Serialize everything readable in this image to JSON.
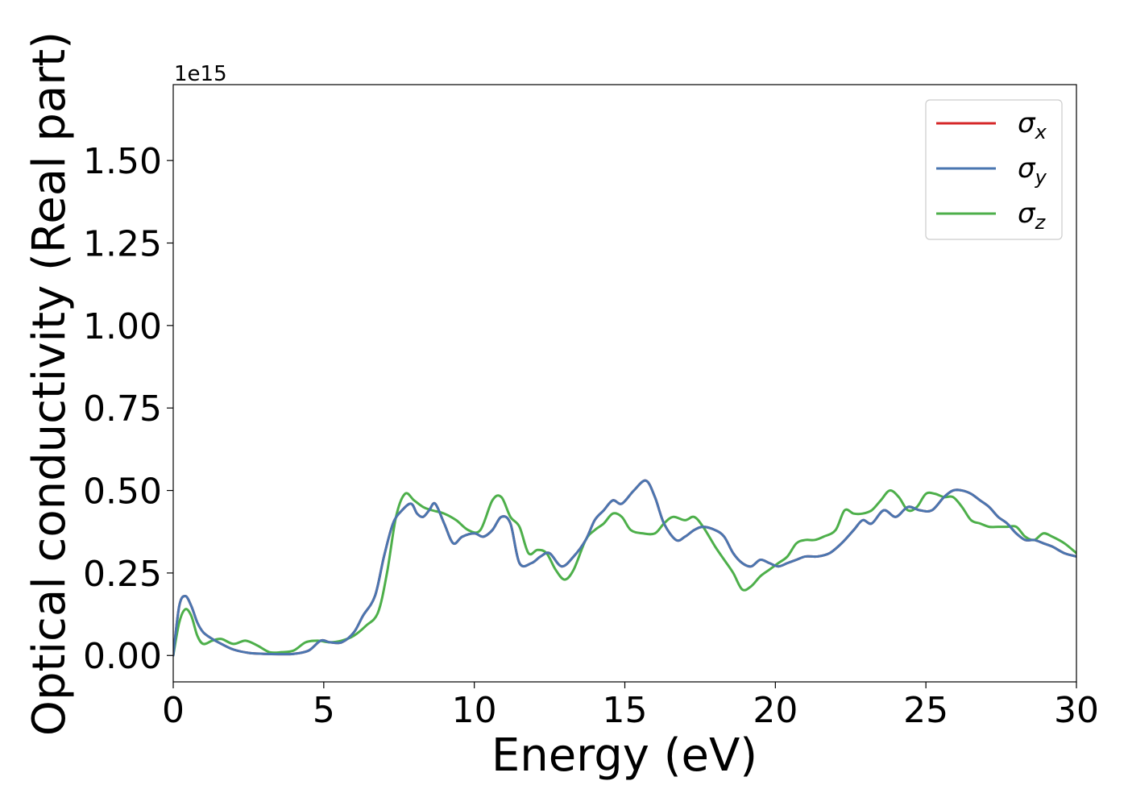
{
  "chart_data": {
    "type": "line",
    "xlabel": "Energy (eV)",
    "ylabel": "Optical conductivity (Real part)",
    "y_offset_text": "1e15",
    "xlim": [
      0,
      30
    ],
    "ylim": [
      -0.08,
      1.73
    ],
    "y_scale_factor": "1e15",
    "x_ticks": [
      0,
      5,
      10,
      15,
      20,
      25,
      30
    ],
    "x_tick_labels": [
      "0",
      "5",
      "10",
      "15",
      "20",
      "25",
      "30"
    ],
    "y_ticks": [
      0.0,
      0.25,
      0.5,
      0.75,
      1.0,
      1.25,
      1.5
    ],
    "y_tick_labels": [
      "0.00",
      "0.25",
      "0.50",
      "0.75",
      "1.00",
      "1.25",
      "1.50"
    ],
    "grid": false,
    "legend_position": "top-right",
    "series": [
      {
        "name": "σx",
        "legend_symbol": "σ",
        "legend_subscript": "x",
        "color": "#d62728",
        "x": [
          0,
          0.2,
          0.4,
          0.6,
          0.8,
          1.0,
          1.3,
          1.6,
          2.0,
          2.5,
          3.0,
          3.5,
          4.0,
          4.5,
          4.9,
          5.2,
          5.6,
          6.0,
          6.3,
          6.7,
          7.0,
          7.3,
          7.6,
          7.9,
          8.1,
          8.3,
          8.5,
          8.7,
          9.0,
          9.3,
          9.6,
          10.0,
          10.3,
          10.6,
          10.9,
          11.2,
          11.5,
          11.9,
          12.2,
          12.5,
          12.9,
          13.3,
          13.7,
          14.0,
          14.3,
          14.6,
          14.9,
          15.3,
          15.7,
          16.0,
          16.3,
          16.7,
          17.0,
          17.3,
          17.6,
          18.0,
          18.3,
          18.6,
          18.9,
          19.2,
          19.5,
          19.8,
          20.1,
          20.4,
          20.7,
          21.0,
          21.4,
          21.8,
          22.2,
          22.6,
          22.9,
          23.2,
          23.6,
          24.0,
          24.4,
          24.8,
          25.2,
          25.6,
          25.9,
          26.2,
          26.5,
          26.8,
          27.1,
          27.4,
          27.7,
          28.0,
          28.3,
          28.6,
          28.9,
          29.2,
          29.6,
          30.0
        ],
        "values": [
          0.0,
          0.15,
          0.18,
          0.15,
          0.1,
          0.07,
          0.05,
          0.035,
          0.018,
          0.008,
          0.005,
          0.004,
          0.005,
          0.015,
          0.045,
          0.04,
          0.04,
          0.07,
          0.12,
          0.18,
          0.3,
          0.4,
          0.44,
          0.46,
          0.43,
          0.42,
          0.44,
          0.46,
          0.4,
          0.34,
          0.36,
          0.37,
          0.36,
          0.38,
          0.42,
          0.4,
          0.28,
          0.28,
          0.3,
          0.31,
          0.27,
          0.3,
          0.35,
          0.41,
          0.44,
          0.47,
          0.46,
          0.5,
          0.53,
          0.48,
          0.4,
          0.35,
          0.36,
          0.38,
          0.39,
          0.38,
          0.36,
          0.31,
          0.28,
          0.27,
          0.29,
          0.28,
          0.27,
          0.28,
          0.29,
          0.3,
          0.3,
          0.31,
          0.34,
          0.38,
          0.41,
          0.4,
          0.44,
          0.42,
          0.45,
          0.44,
          0.44,
          0.48,
          0.5,
          0.5,
          0.49,
          0.47,
          0.45,
          0.42,
          0.4,
          0.37,
          0.35,
          0.35,
          0.34,
          0.33,
          0.31,
          0.3
        ]
      },
      {
        "name": "σy",
        "legend_symbol": "σ",
        "legend_subscript": "y",
        "color": "#4a76b0",
        "x": [
          0,
          0.2,
          0.4,
          0.6,
          0.8,
          1.0,
          1.3,
          1.6,
          2.0,
          2.5,
          3.0,
          3.5,
          4.0,
          4.5,
          4.9,
          5.2,
          5.6,
          6.0,
          6.3,
          6.7,
          7.0,
          7.3,
          7.6,
          7.9,
          8.1,
          8.3,
          8.5,
          8.7,
          9.0,
          9.3,
          9.6,
          10.0,
          10.3,
          10.6,
          10.9,
          11.2,
          11.5,
          11.9,
          12.2,
          12.5,
          12.9,
          13.3,
          13.7,
          14.0,
          14.3,
          14.6,
          14.9,
          15.3,
          15.7,
          16.0,
          16.3,
          16.7,
          17.0,
          17.3,
          17.6,
          18.0,
          18.3,
          18.6,
          18.9,
          19.2,
          19.5,
          19.8,
          20.1,
          20.4,
          20.7,
          21.0,
          21.4,
          21.8,
          22.2,
          22.6,
          22.9,
          23.2,
          23.6,
          24.0,
          24.4,
          24.8,
          25.2,
          25.6,
          25.9,
          26.2,
          26.5,
          26.8,
          27.1,
          27.4,
          27.7,
          28.0,
          28.3,
          28.6,
          28.9,
          29.2,
          29.6,
          30.0
        ],
        "values": [
          0.0,
          0.15,
          0.18,
          0.15,
          0.1,
          0.07,
          0.05,
          0.035,
          0.018,
          0.008,
          0.005,
          0.004,
          0.005,
          0.015,
          0.045,
          0.04,
          0.04,
          0.07,
          0.12,
          0.18,
          0.3,
          0.4,
          0.44,
          0.46,
          0.43,
          0.42,
          0.44,
          0.46,
          0.4,
          0.34,
          0.36,
          0.37,
          0.36,
          0.38,
          0.42,
          0.4,
          0.28,
          0.28,
          0.3,
          0.31,
          0.27,
          0.3,
          0.35,
          0.41,
          0.44,
          0.47,
          0.46,
          0.5,
          0.53,
          0.48,
          0.4,
          0.35,
          0.36,
          0.38,
          0.39,
          0.38,
          0.36,
          0.31,
          0.28,
          0.27,
          0.29,
          0.28,
          0.27,
          0.28,
          0.29,
          0.3,
          0.3,
          0.31,
          0.34,
          0.38,
          0.41,
          0.4,
          0.44,
          0.42,
          0.45,
          0.44,
          0.44,
          0.48,
          0.5,
          0.5,
          0.49,
          0.47,
          0.45,
          0.42,
          0.4,
          0.37,
          0.35,
          0.35,
          0.34,
          0.33,
          0.31,
          0.3
        ]
      },
      {
        "name": "σz",
        "legend_symbol": "σ",
        "legend_subscript": "z",
        "color": "#4daf4a",
        "x": [
          0,
          0.2,
          0.4,
          0.6,
          0.8,
          1.0,
          1.3,
          1.6,
          2.0,
          2.4,
          2.8,
          3.2,
          3.6,
          4.0,
          4.4,
          4.8,
          5.2,
          5.6,
          6.0,
          6.4,
          6.8,
          7.1,
          7.4,
          7.7,
          8.0,
          8.3,
          8.6,
          9.0,
          9.4,
          9.8,
          10.2,
          10.6,
          10.9,
          11.2,
          11.5,
          11.8,
          12.1,
          12.4,
          12.7,
          13.0,
          13.3,
          13.7,
          14.0,
          14.3,
          14.6,
          14.9,
          15.2,
          15.6,
          16.0,
          16.3,
          16.6,
          17.0,
          17.3,
          17.6,
          18.0,
          18.3,
          18.6,
          18.9,
          19.2,
          19.5,
          19.8,
          20.1,
          20.4,
          20.7,
          21.0,
          21.3,
          21.6,
          22.0,
          22.3,
          22.6,
          22.9,
          23.2,
          23.5,
          23.8,
          24.1,
          24.4,
          24.7,
          25.0,
          25.3,
          25.6,
          25.9,
          26.2,
          26.5,
          26.8,
          27.1,
          27.4,
          27.7,
          28.0,
          28.3,
          28.6,
          28.9,
          29.2,
          29.6,
          30.0
        ],
        "values": [
          0.0,
          0.1,
          0.14,
          0.12,
          0.06,
          0.035,
          0.045,
          0.05,
          0.035,
          0.045,
          0.03,
          0.01,
          0.01,
          0.015,
          0.04,
          0.045,
          0.04,
          0.045,
          0.06,
          0.09,
          0.13,
          0.25,
          0.42,
          0.49,
          0.47,
          0.45,
          0.44,
          0.43,
          0.41,
          0.38,
          0.38,
          0.47,
          0.48,
          0.42,
          0.39,
          0.31,
          0.32,
          0.31,
          0.26,
          0.23,
          0.26,
          0.35,
          0.38,
          0.4,
          0.43,
          0.42,
          0.38,
          0.37,
          0.37,
          0.4,
          0.42,
          0.41,
          0.42,
          0.39,
          0.33,
          0.29,
          0.25,
          0.2,
          0.21,
          0.24,
          0.26,
          0.28,
          0.3,
          0.34,
          0.35,
          0.35,
          0.36,
          0.38,
          0.44,
          0.43,
          0.43,
          0.44,
          0.47,
          0.5,
          0.48,
          0.44,
          0.45,
          0.49,
          0.49,
          0.48,
          0.48,
          0.45,
          0.41,
          0.4,
          0.39,
          0.39,
          0.39,
          0.39,
          0.36,
          0.35,
          0.37,
          0.36,
          0.34,
          0.31
        ]
      }
    ]
  }
}
